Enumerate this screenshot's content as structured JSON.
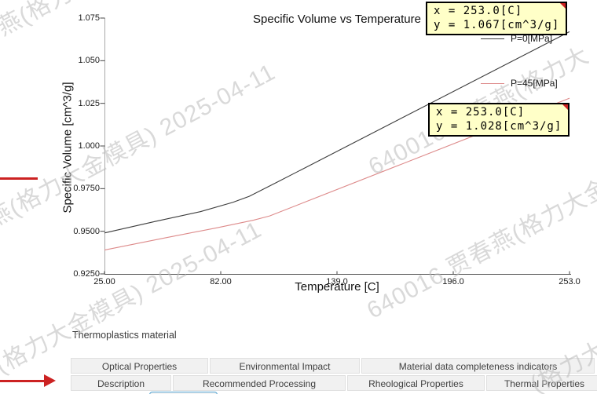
{
  "colors": {
    "series_p0": "#3c3c3c",
    "series_p45": "#dd8a8a",
    "axis_v": "#a8a8a8",
    "axis_h": "#555555",
    "tick": "#444444",
    "tooltip_bg": "#ffffc8",
    "tooltip_border": "#000000",
    "tooltip_marker": "#cc2222",
    "annotation_arrow": "#cc2222",
    "tab_bg": "#f1f1f1",
    "tab_highlight_border": "#4da0cf",
    "watermark": "#b9b9b9"
  },
  "chart_data": {
    "type": "line",
    "title": "Specific Volume vs Temperature",
    "xlabel": "Temperature [C]",
    "ylabel": "Specific Volume [cm^3/g]",
    "xlim": [
      25,
      253
    ],
    "ylim": [
      0.925,
      1.075
    ],
    "x_tick_labels": [
      "25.00",
      "82.00",
      "139.0",
      "196.0",
      "253.0"
    ],
    "y_tick_labels": [
      "1.075",
      "1.050",
      "1.025",
      "1.000",
      "0.9750",
      "0.9500",
      "0.9250"
    ],
    "grid": false,
    "legend_position": "inside-top-right",
    "series": [
      {
        "name": "P=0[MPa]",
        "color": "#3c3c3c",
        "points": [
          [
            25,
            0.949
          ],
          [
            50,
            0.9558
          ],
          [
            72,
            0.9615
          ],
          [
            88,
            0.967
          ],
          [
            96,
            0.9705
          ],
          [
            110,
            0.979
          ],
          [
            253,
            1.067
          ]
        ]
      },
      {
        "name": "P=45[MPa]",
        "color": "#dd8a8a",
        "points": [
          [
            25,
            0.939
          ],
          [
            55,
            0.9462
          ],
          [
            80,
            0.952
          ],
          [
            98,
            0.9565
          ],
          [
            106,
            0.959
          ],
          [
            253,
            1.028
          ]
        ]
      }
    ],
    "probes": [
      {
        "line1": "x = 253.0[C]",
        "line2": "y = 1.067[cm^3/g]"
      },
      {
        "line1": "x = 253.0[C]",
        "line2": "y = 1.028[cm^3/g]"
      }
    ]
  },
  "footer": {
    "section_label": "Thermoplastics material",
    "tab_rows": [
      [
        "Optical Properties",
        "Environmental Impact",
        "Material data completeness indicators"
      ],
      [
        "Description",
        "Recommended Processing",
        "Rheological Properties",
        "Thermal Properties"
      ]
    ]
  },
  "watermarks": [
    "燕(格力大金模具) 2025-04-11",
    "(格力大金模具) 2025-04-11",
    "640016 贾春燕(格力大",
    "640016 贾春燕(格力大金",
    "(格力大金",
    "春燕(格力"
  ]
}
